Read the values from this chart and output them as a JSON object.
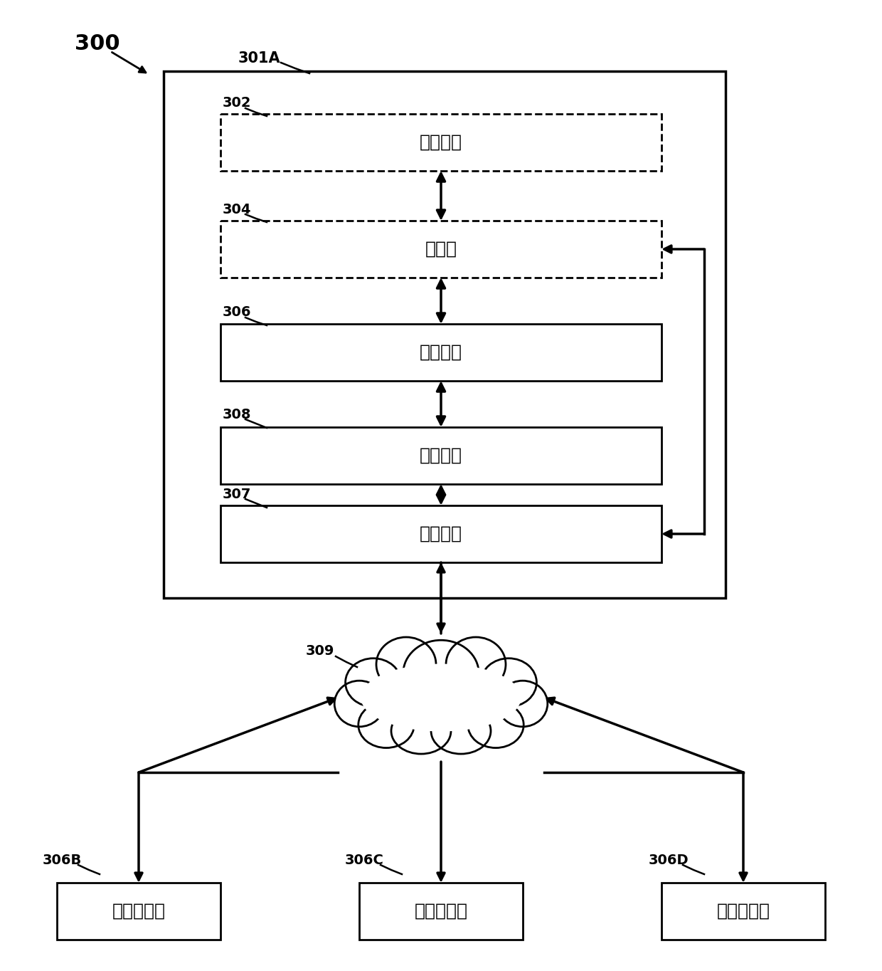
{
  "fig_width": 12.4,
  "fig_height": 13.64,
  "bg_color": "#ffffff",
  "label_300": "300",
  "label_301A": "301A",
  "label_302": "302",
  "label_304": "304",
  "label_306": "306",
  "label_308": "308",
  "label_307": "307",
  "label_309": "309",
  "label_306B": "306B",
  "label_306C": "306C",
  "label_306D": "306D",
  "text_302": "分析模块",
  "text_304": "处理器",
  "text_306": "存储介质",
  "text_308": "控制模块",
  "text_307": "网络接口",
  "text_306B": "计算机系统",
  "text_306C": "计算机系统",
  "text_306D": "计算机系统",
  "line_color": "#000000",
  "font_size_label": 14,
  "font_size_box": 18,
  "font_size_big_label": 18
}
